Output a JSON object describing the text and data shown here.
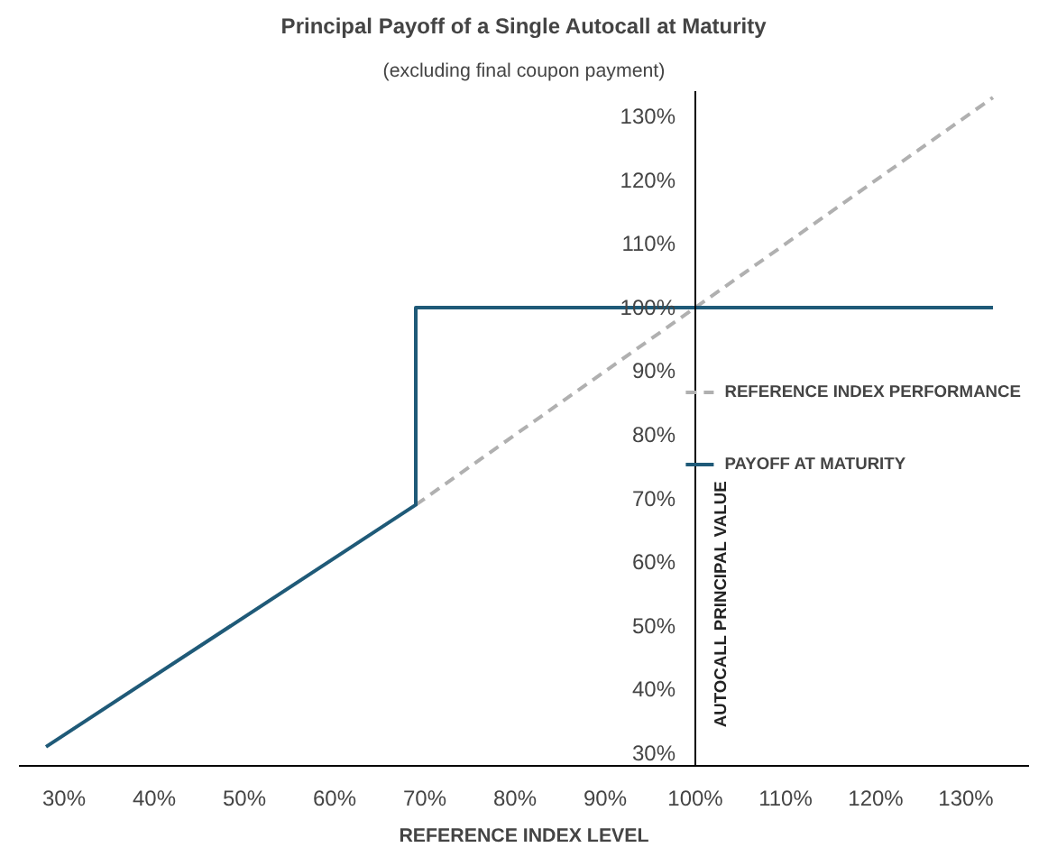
{
  "chart_data": {
    "type": "line",
    "title": "Principal Payoff of a Single Autocall at Maturity",
    "subtitle": "(excluding final coupon payment)",
    "xlabel": "REFERENCE INDEX LEVEL",
    "ylabel": "AUTOCALL PRINCIPAL VALUE",
    "series": [
      {
        "name": "REFERENCE INDEX PERFORMANCE",
        "color": "#b0b0b0",
        "line_style": "dashed",
        "x": [
          69,
          133
        ],
        "values": [
          69,
          133
        ]
      },
      {
        "name": "PAYOFF AT MATURITY",
        "color": "#1f5a78",
        "line_style": "solid",
        "x": [
          28,
          69,
          69,
          133
        ],
        "values": [
          31,
          69,
          100,
          100
        ]
      }
    ],
    "xlim": [
      25,
      137
    ],
    "ylim": [
      28,
      134
    ],
    "xticks": [
      {
        "value": 30,
        "label": "30%"
      },
      {
        "value": 40,
        "label": "40%"
      },
      {
        "value": 50,
        "label": "50%"
      },
      {
        "value": 60,
        "label": "60%"
      },
      {
        "value": 70,
        "label": "70%"
      },
      {
        "value": 80,
        "label": "80%"
      },
      {
        "value": 90,
        "label": "90%"
      },
      {
        "value": 100,
        "label": "100%"
      },
      {
        "value": 110,
        "label": "110%"
      },
      {
        "value": 120,
        "label": "120%"
      },
      {
        "value": 130,
        "label": "130%"
      }
    ],
    "yticks": [
      {
        "value": 30,
        "label": "30%"
      },
      {
        "value": 40,
        "label": "40%"
      },
      {
        "value": 50,
        "label": "50%"
      },
      {
        "value": 60,
        "label": "60%"
      },
      {
        "value": 70,
        "label": "70%"
      },
      {
        "value": 80,
        "label": "80%"
      },
      {
        "value": 90,
        "label": "90%"
      },
      {
        "value": 100,
        "label": "100%"
      },
      {
        "value": 110,
        "label": "110%"
      },
      {
        "value": 120,
        "label": "120%"
      },
      {
        "value": 130,
        "label": "130%"
      }
    ],
    "grid": false,
    "legend": "right"
  }
}
